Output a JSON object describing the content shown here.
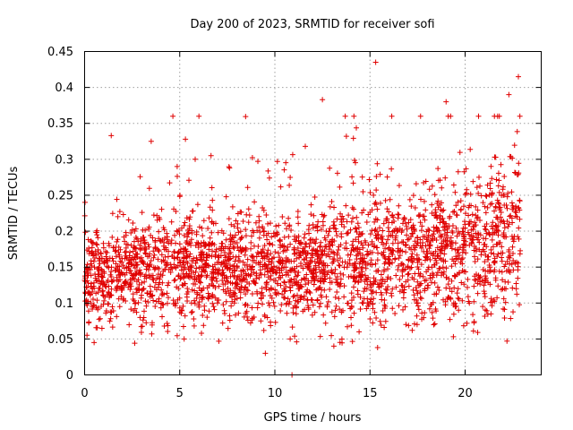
{
  "chart_data": {
    "type": "scatter",
    "title": "Day 200 of 2023, SRMTID for receiver sofi",
    "xlabel": "GPS time / hours",
    "ylabel": "SRMTID / TECUs",
    "xlim": [
      0,
      24
    ],
    "ylim": [
      0,
      0.45
    ],
    "xticks": [
      0,
      5,
      10,
      15,
      20
    ],
    "xtick_labels": [
      "0",
      "5",
      "10",
      "15",
      "20"
    ],
    "yticks": [
      0,
      0.05,
      0.1,
      0.15,
      0.2,
      0.25,
      0.3,
      0.35,
      0.4,
      0.45
    ],
    "ytick_labels": [
      "0",
      "0.05",
      "0.1",
      "0.15",
      "0.2",
      "0.25",
      "0.3",
      "0.35",
      "0.4",
      "0.45"
    ],
    "grid": true,
    "marker": "+",
    "color": "#e00000",
    "series": [
      {
        "name": "SRMTID",
        "x_range": [
          0,
          22.9
        ],
        "n_points": 2800,
        "trend": [
          {
            "x": 0,
            "median": 0.135,
            "spread": 0.045
          },
          {
            "x": 2,
            "median": 0.14,
            "spread": 0.045
          },
          {
            "x": 5,
            "median": 0.145,
            "spread": 0.05
          },
          {
            "x": 7,
            "median": 0.15,
            "spread": 0.05
          },
          {
            "x": 10,
            "median": 0.14,
            "spread": 0.05
          },
          {
            "x": 13,
            "median": 0.15,
            "spread": 0.055
          },
          {
            "x": 15,
            "median": 0.155,
            "spread": 0.06
          },
          {
            "x": 18,
            "median": 0.16,
            "spread": 0.06
          },
          {
            "x": 21,
            "median": 0.175,
            "spread": 0.065
          },
          {
            "x": 22.9,
            "median": 0.2,
            "spread": 0.07
          }
        ],
        "notable_points": [
          {
            "x": 15.3,
            "y": 0.435
          },
          {
            "x": 22.8,
            "y": 0.415
          },
          {
            "x": 12.5,
            "y": 0.383
          },
          {
            "x": 22.3,
            "y": 0.39
          },
          {
            "x": 19.0,
            "y": 0.38
          },
          {
            "x": 13.7,
            "y": 0.36
          },
          {
            "x": 1.4,
            "y": 0.333
          },
          {
            "x": 3.5,
            "y": 0.325
          },
          {
            "x": 5.3,
            "y": 0.328
          },
          {
            "x": 11.6,
            "y": 0.318
          },
          {
            "x": 10.9,
            "y": 0.0
          },
          {
            "x": 9.5,
            "y": 0.03
          },
          {
            "x": 13.1,
            "y": 0.04
          },
          {
            "x": 22.2,
            "y": 0.047
          },
          {
            "x": 15.4,
            "y": 0.038
          },
          {
            "x": 0.5,
            "y": 0.045
          }
        ]
      }
    ]
  }
}
